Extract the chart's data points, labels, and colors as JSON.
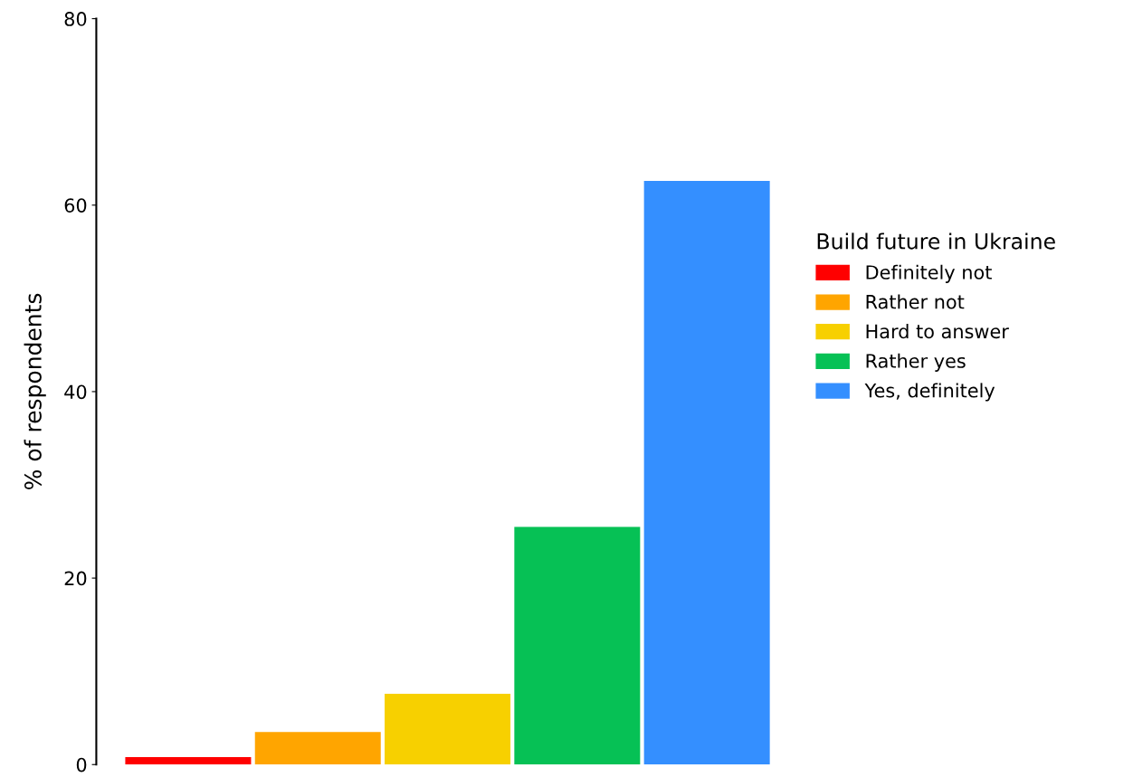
{
  "chart_data": {
    "type": "bar",
    "ylabel": "% of respondents",
    "legend_title": "Build future in Ukraine",
    "legend": "right",
    "grid": false,
    "tick_labels": "y",
    "categories": [
      null
    ],
    "series": [
      {
        "name": "Definitely not",
        "color": "#ff0000",
        "values": [
          0.8
        ]
      },
      {
        "name": "Rather not",
        "color": "#ffa500",
        "values": [
          3.5
        ]
      },
      {
        "name": "Hard to answer",
        "color": "#f7d000",
        "values": [
          7.6
        ]
      },
      {
        "name": "Rather yes",
        "color": "#06c155",
        "values": [
          25.5
        ]
      },
      {
        "name": "Yes, definitely",
        "color": "#348fff",
        "values": [
          62.6
        ]
      }
    ],
    "ylim": [
      0,
      80
    ],
    "yticks": [
      0,
      20,
      40,
      60,
      80
    ]
  }
}
